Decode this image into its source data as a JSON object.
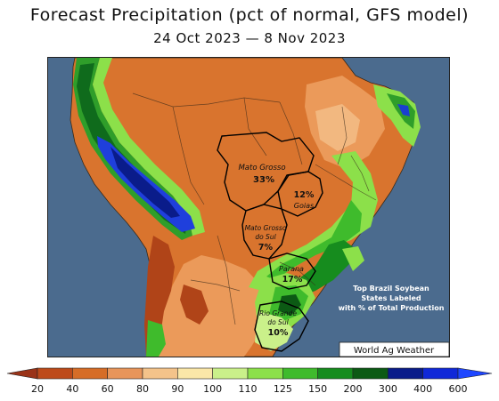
{
  "title": "Forecast Precipitation (pct of normal, GFS model)",
  "subtitle": "24 Oct 2023 — 8 Nov 2023",
  "credit": "World Ag Weather",
  "note": [
    "Top Brazil Soybean",
    "States Labeled",
    "with % of Total Production"
  ],
  "states": [
    {
      "name": "Mato Grosso",
      "pct": "33%"
    },
    {
      "name": "Goias",
      "pct": "12%"
    },
    {
      "name": [
        "Mato Grosso",
        "do Sul"
      ],
      "pct": "7%"
    },
    {
      "name": "Parana",
      "pct": "17%"
    },
    {
      "name": [
        "Rio Grande",
        "do Sul"
      ],
      "pct": "10%"
    }
  ],
  "legend": {
    "ticks": [
      "20",
      "40",
      "60",
      "80",
      "90",
      "100",
      "110",
      "125",
      "150",
      "200",
      "300",
      "400",
      "600"
    ],
    "colors": [
      "#9a3318",
      "#bd4a1a",
      "#d66d27",
      "#e8955a",
      "#f4c38a",
      "#fbe7a8",
      "#caf08a",
      "#8ce04a",
      "#3fbb2c",
      "#168c1e",
      "#0c5a14",
      "#0a1c8a",
      "#1028d8",
      "#1e46ff"
    ]
  }
}
